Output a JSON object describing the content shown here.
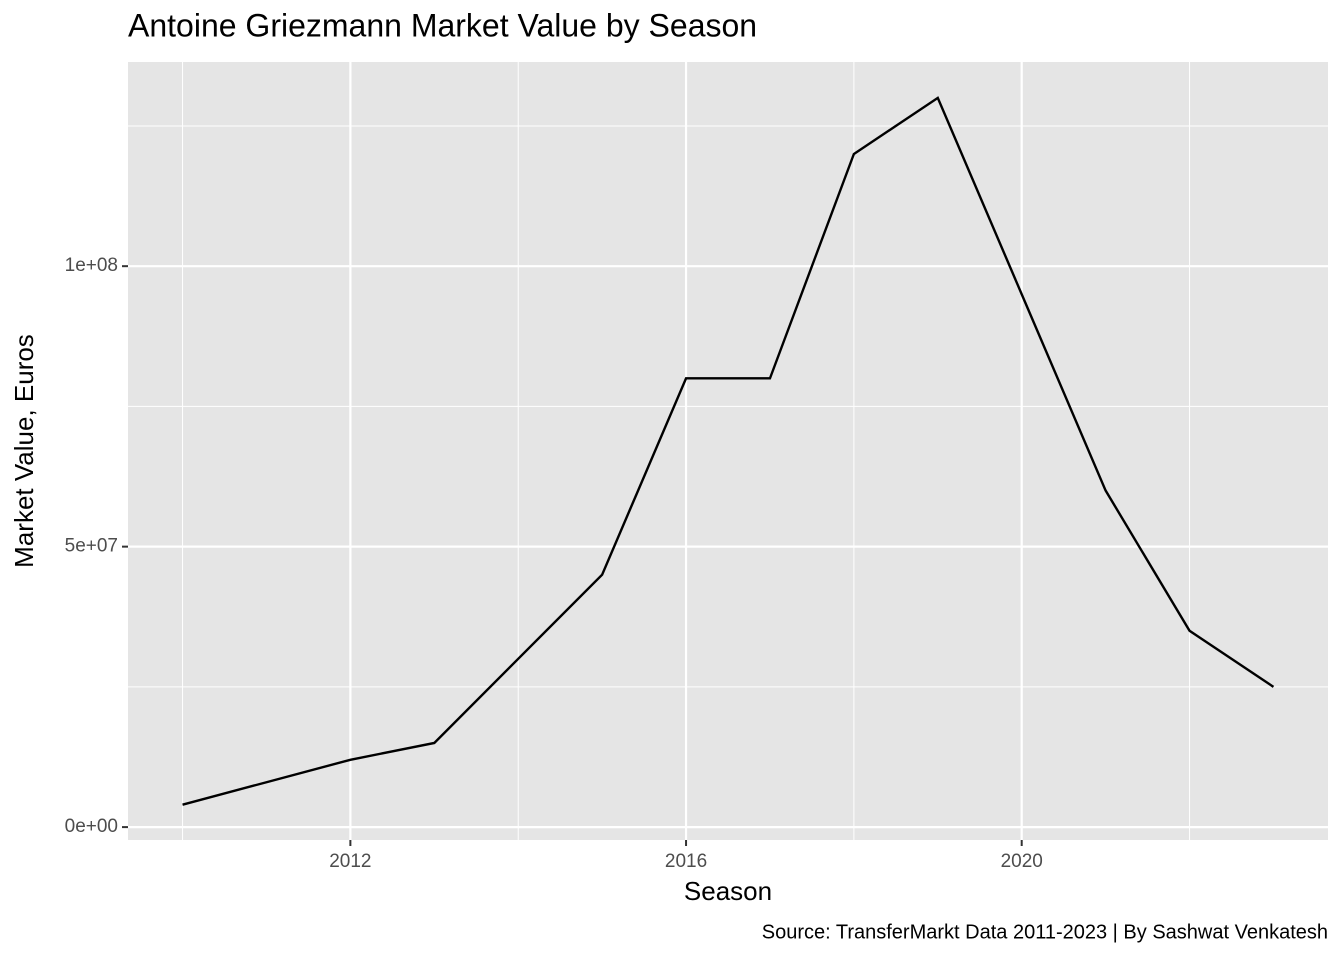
{
  "chart_data": {
    "type": "line",
    "title": "Antoine Griezmann Market Value by Season",
    "x_label": "Season",
    "y_label": "Market Value, Euros",
    "caption": "Source: TransferMarkt Data 2011-2023 | By Sashwat Venkatesh",
    "x": [
      2010,
      2011,
      2012,
      2013,
      2014,
      2015,
      2016,
      2017,
      2018,
      2019,
      2020,
      2021,
      2022,
      2023
    ],
    "series": [
      {
        "color": "#000000",
        "values": [
          4000000,
          8000000,
          12000000,
          15000000,
          30000000,
          45000000,
          80000000,
          80000000,
          120000000,
          130000000,
          95000000,
          60000000,
          35000000,
          25000000
        ]
      }
    ],
    "xlim": [
      2009.35,
      2023.65
    ],
    "xticks": [
      2012,
      2016,
      2020
    ],
    "xminor": [
      2010,
      2014,
      2018,
      2022
    ],
    "ylim": [
      -2300000,
      136400000
    ],
    "yticks": [
      {
        "value": 0,
        "label": "0e+00"
      },
      {
        "value": 50000000,
        "label": "5e+07"
      },
      {
        "value": 100000000,
        "label": "1e+08"
      }
    ],
    "yminor": [
      25000000,
      75000000,
      125000000
    ],
    "grid": true
  }
}
